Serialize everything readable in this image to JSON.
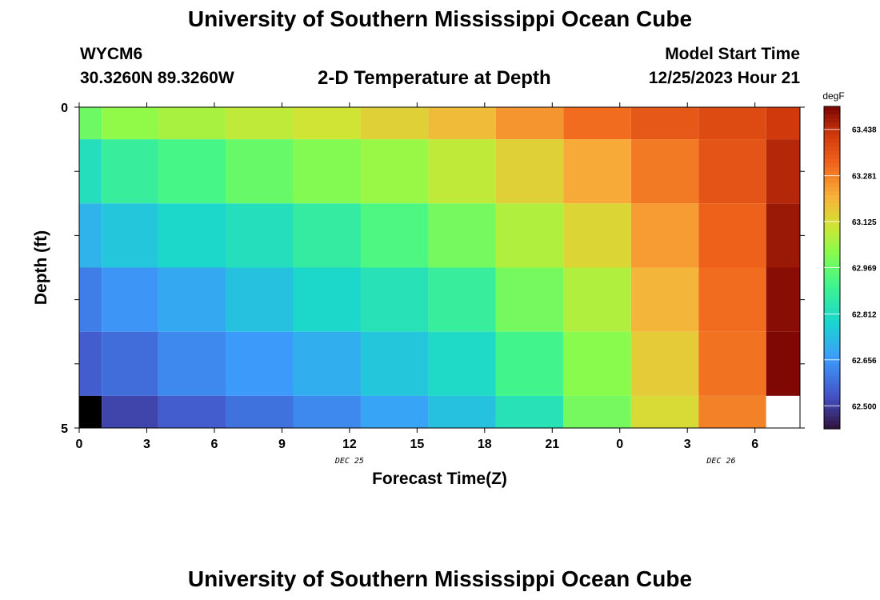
{
  "header": {
    "title": "University of Southern Mississippi Ocean Cube",
    "station_id": "WYCM6",
    "coordinates": "30.3260N  89.3260W",
    "subtitle": "2-D Temperature at Depth",
    "model_start_label": "Model Start Time",
    "model_start_value": "12/25/2023 Hour 21"
  },
  "footer": {
    "title": "University of Southern Mississippi Ocean Cube"
  },
  "chart_data": {
    "type": "heatmap",
    "xlabel": "Forecast Time(Z)",
    "ylabel": "Depth (ft)",
    "ylim": [
      0,
      5
    ],
    "x_tick_labels": [
      "0",
      "3",
      "6",
      "9",
      "12",
      "15",
      "18",
      "21",
      "0",
      "3",
      "6"
    ],
    "date_labels": [
      {
        "text": "DEC 25",
        "at_tick": 4
      },
      {
        "text": "DEC 26",
        "at_tick": 9.5
      }
    ],
    "y_tick_labels": [
      {
        "value": 0,
        "text": "0"
      },
      {
        "value": 5,
        "text": "5"
      }
    ],
    "colorbar": {
      "unit": "degF",
      "ticks": [
        63.438,
        63.281,
        63.125,
        62.969,
        62.812,
        62.656,
        62.5
      ],
      "tick_labels": [
        "63.438",
        "63.281",
        "63.125",
        "62.969",
        "62.812",
        "62.656",
        "62.500"
      ],
      "vmin": 62.422,
      "vmax": 63.516
    },
    "depth_bands": [
      [
        0,
        0.5
      ],
      [
        0.5,
        1.5
      ],
      [
        1.5,
        2.5
      ],
      [
        2.5,
        3.5
      ],
      [
        3.5,
        4.5
      ],
      [
        4.5,
        5
      ]
    ],
    "time_bands": [
      [
        0,
        1
      ],
      [
        1,
        3.5
      ],
      [
        3.5,
        6.5
      ],
      [
        6.5,
        9.5
      ],
      [
        9.5,
        12.5
      ],
      [
        12.5,
        15.5
      ],
      [
        15.5,
        18.5
      ],
      [
        18.5,
        21.5
      ],
      [
        21.5,
        24.5
      ],
      [
        24.5,
        27.5
      ],
      [
        27.5,
        30.5
      ],
      [
        30.5,
        32
      ]
    ],
    "values": [
      [
        62.98,
        63.03,
        63.06,
        63.09,
        63.11,
        63.15,
        63.19,
        63.25,
        63.31,
        63.35,
        63.38,
        63.42
      ],
      [
        62.82,
        62.88,
        62.92,
        62.97,
        63.01,
        63.04,
        63.09,
        63.15,
        63.22,
        63.29,
        63.36,
        63.45
      ],
      [
        62.71,
        62.75,
        62.79,
        62.82,
        62.87,
        62.93,
        62.99,
        63.07,
        63.14,
        63.24,
        63.33,
        63.48
      ],
      [
        62.61,
        62.65,
        62.69,
        62.74,
        62.79,
        62.83,
        62.88,
        62.99,
        63.07,
        63.2,
        63.31,
        63.5
      ],
      [
        62.55,
        62.58,
        62.63,
        62.66,
        62.7,
        62.75,
        62.8,
        62.91,
        63.02,
        63.16,
        63.3,
        63.51
      ],
      [
        null,
        62.51,
        62.55,
        62.59,
        62.63,
        62.68,
        62.74,
        62.83,
        62.99,
        63.13,
        63.28,
        null
      ]
    ]
  }
}
